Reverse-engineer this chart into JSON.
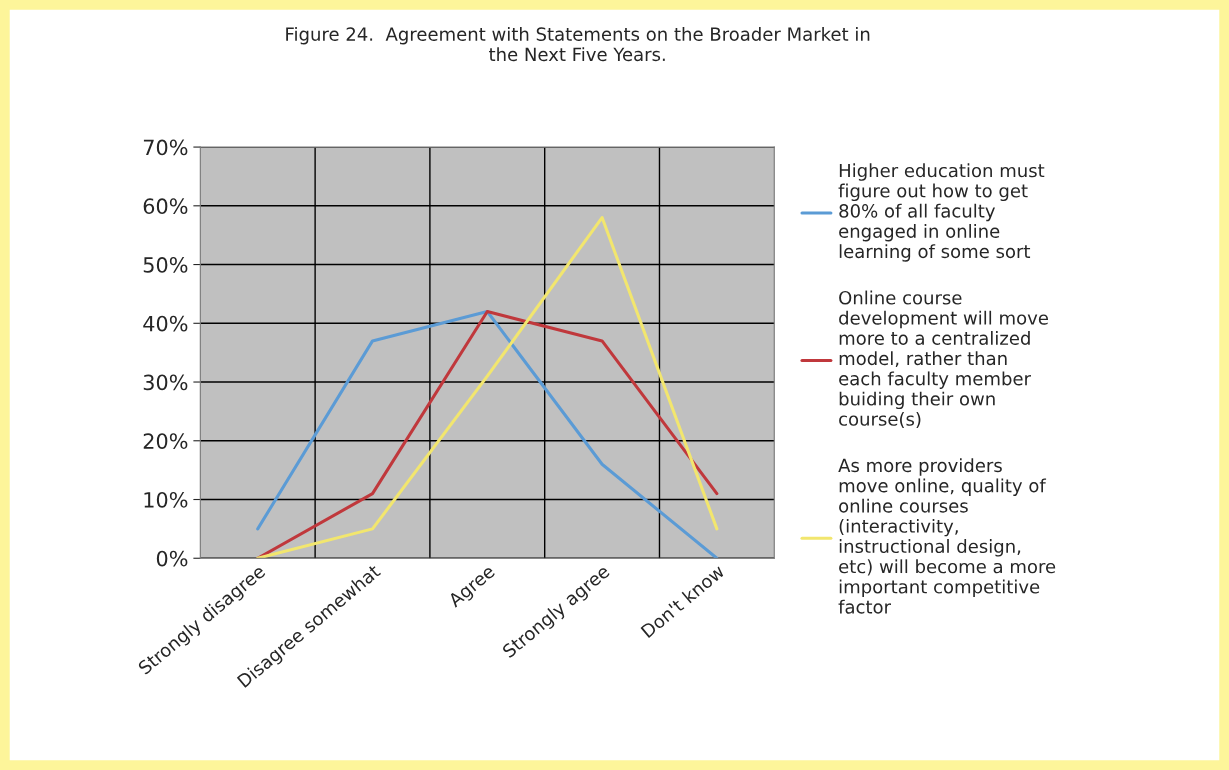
{
  "chart_data": {
    "type": "line",
    "title": "Figure 24.  Agreement with Statements on the Broader Market in\nthe Next Five Years.",
    "categories": [
      "Strongly disagree",
      "Disagree somewhat",
      "Agree",
      "Strongly agree",
      "Don't know"
    ],
    "series": [
      {
        "name": "Higher education must\nfigure out how to get\n80% of all faculty\nengaged in online\nlearning of some sort",
        "color": "#5b9bd5",
        "values": [
          5,
          37,
          42,
          16,
          0
        ]
      },
      {
        "name": "Online course\ndevelopment will move\nmore to a centralized\nmodel, rather than\neach faculty member\nbuiding their own\ncourse(s)",
        "color": "#c0383c",
        "values": [
          0,
          11,
          42,
          37,
          11
        ]
      },
      {
        "name": "As more providers\nmove online, quality of\nonline courses\n(interactivity,\ninstructional design,\netc) will become a more\nimportant competitive\nfactor",
        "color": "#f2e66e",
        "values": [
          0,
          5,
          31,
          58,
          5
        ]
      }
    ],
    "ylim": [
      0,
      70
    ],
    "yticks": [
      {
        "value": 0,
        "label": "0%"
      },
      {
        "value": 10,
        "label": "10%"
      },
      {
        "value": 20,
        "label": "20%"
      },
      {
        "value": 30,
        "label": "30%"
      },
      {
        "value": 40,
        "label": "40%"
      },
      {
        "value": 50,
        "label": "50%"
      },
      {
        "value": 60,
        "label": "60%"
      },
      {
        "value": 70,
        "label": "70%"
      }
    ],
    "grid": true,
    "legend": "right",
    "marker": "none",
    "line_style": "solid"
  }
}
